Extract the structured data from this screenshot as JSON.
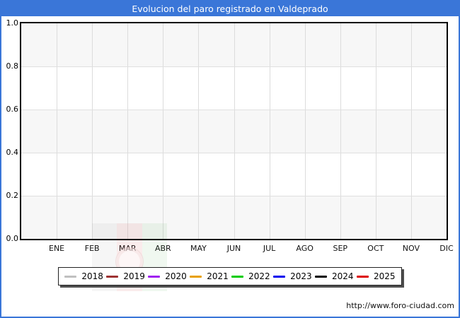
{
  "window": {
    "title": "Evolucion del paro registrado en Valdeprado"
  },
  "footer": {
    "url": "http://www.foro-ciudad.com"
  },
  "colors": {
    "titlebar": "#3a76d8",
    "frame_border": "#3a76d8",
    "plot_band_gray": "#f7f7f7",
    "gridline": "#dcdcdc"
  },
  "chart_data": {
    "type": "line",
    "title": "Evolucion del paro registrado en Valdeprado",
    "categories": [
      "ENE",
      "FEB",
      "MAR",
      "ABR",
      "MAY",
      "JUN",
      "JUL",
      "AGO",
      "SEP",
      "OCT",
      "NOV",
      "DIC"
    ],
    "ytick_labels": [
      "1.0",
      "0.8",
      "0.6",
      "0.4",
      "0.2",
      "0.0"
    ],
    "ylim": [
      0.0,
      1.0
    ],
    "grid": true,
    "legend_position": "bottom",
    "series": [
      {
        "name": "2018",
        "color": "#c0c0c0",
        "values": []
      },
      {
        "name": "2019",
        "color": "#9e3232",
        "values": []
      },
      {
        "name": "2020",
        "color": "#a020f0",
        "values": []
      },
      {
        "name": "2021",
        "color": "#e8a000",
        "values": []
      },
      {
        "name": "2022",
        "color": "#00cc00",
        "values": []
      },
      {
        "name": "2023",
        "color": "#0000ee",
        "values": []
      },
      {
        "name": "2024",
        "color": "#000000",
        "values": []
      },
      {
        "name": "2025",
        "color": "#dd0000",
        "values": []
      }
    ]
  }
}
